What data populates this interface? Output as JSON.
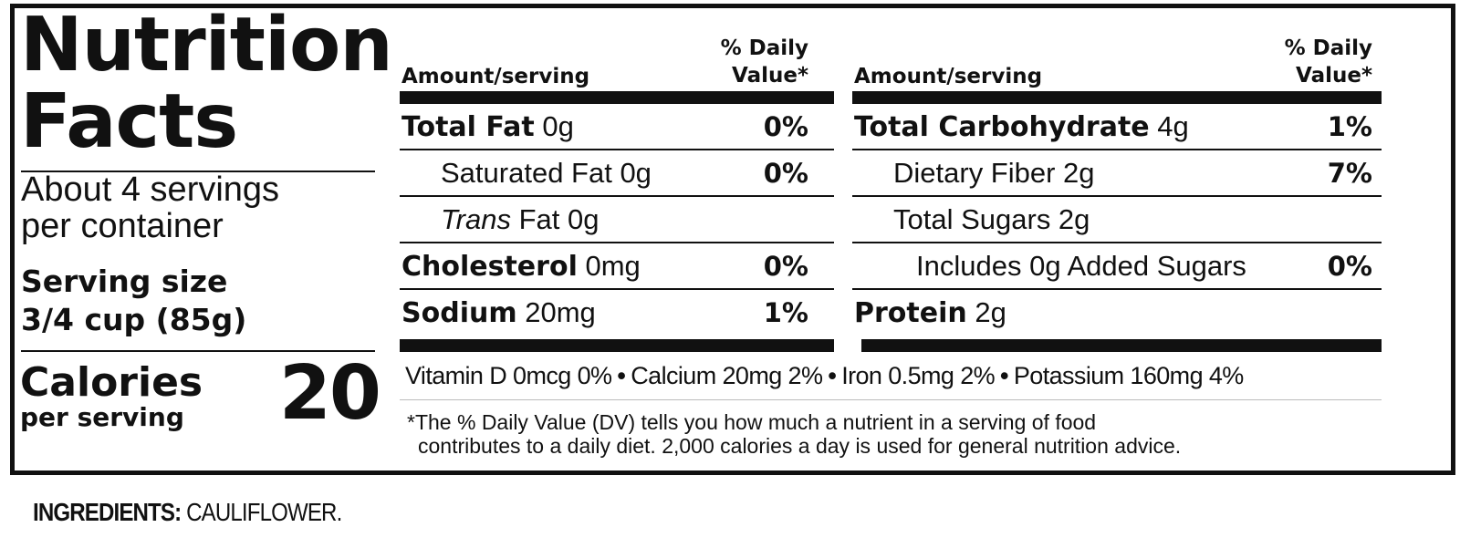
{
  "label": {
    "title_line1": "Nutrition",
    "title_line2": "Facts",
    "servings_line1": "About 4 servings",
    "servings_line2": "per container",
    "serving_size_label": "Serving size",
    "serving_size_value": "3/4 cup (85g)",
    "calories_label": "Calories",
    "calories_sub": "per serving",
    "calories_value": "20",
    "header_amount": "Amount/serving",
    "header_dv_line1": "% Daily",
    "header_dv_line2": "Value*",
    "left_rows": [
      {
        "bold": "Total Fat",
        "text": "0g",
        "pct": "0%"
      },
      {
        "bold": "",
        "text": "Saturated Fat 0g",
        "pct": "0%"
      },
      {
        "italic": "Trans",
        "text": "Fat 0g",
        "pct": ""
      },
      {
        "bold": "Cholesterol",
        "text": "0mg",
        "pct": "0%"
      },
      {
        "bold": "Sodium",
        "text": "20mg",
        "pct": "1%"
      }
    ],
    "right_rows": [
      {
        "bold": "Total Carbohydrate",
        "text": "4g",
        "pct": "1%"
      },
      {
        "bold": "",
        "text": "Dietary Fiber 2g",
        "pct": "7%"
      },
      {
        "bold": "",
        "text": "Total Sugars 2g",
        "pct": ""
      },
      {
        "bold": "",
        "text": "Includes 0g Added Sugars",
        "pct": "0%"
      },
      {
        "bold": "Protein",
        "text": "2g",
        "pct": ""
      }
    ],
    "vitamins": [
      "Vitamin D 0mcg 0%",
      "Calcium 20mg 2%",
      "Iron 0.5mg  2%",
      "Potassium 160mg 4%"
    ],
    "vitamin_separator": "•",
    "footnote_line1": "*The % Daily Value (DV) tells you how much a nutrient in a serving of food",
    "footnote_line2": "contributes to a daily diet. 2,000 calories a day is used for general nutrition advice."
  },
  "ingredients": {
    "label": "INGREDIENTS:",
    "value": "CAULIFLOWER."
  }
}
